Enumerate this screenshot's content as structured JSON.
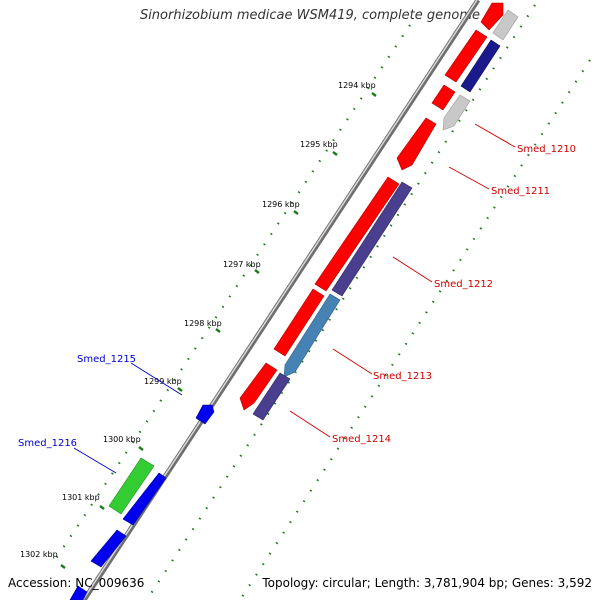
{
  "header": {
    "title": "Sinorhizobium medicae WSM419, complete genome"
  },
  "footer": {
    "accession": "Accession: NC_009636",
    "summary": "Topology: circular; Length: 3,781,904 bp; Genes: 3,592"
  },
  "colors": {
    "red": "#ff0000",
    "gray": "#c8c8c8",
    "navy": "#1a1a8c",
    "purple": "#4a3f8f",
    "steel": "#4682b4",
    "blue": "#0000ee",
    "green": "#33cc33",
    "backbone": "#808080",
    "tick": "#1e7a1e",
    "label_red": "#cc0000",
    "label_blue": "#0000cc"
  },
  "scale_labels": [
    "1294 kbp",
    "1295 kbp",
    "1296 kbp",
    "1297 kbp",
    "1298 kbp",
    "1299 kbp",
    "1300 kbp",
    "1301 kbp",
    "1302 kbp"
  ],
  "gene_labels": {
    "red": [
      "Smed_1210",
      "Smed_1211",
      "Smed_1212",
      "Smed_1213",
      "Smed_1214"
    ],
    "blue": [
      "Smed_1215",
      "Smed_1216"
    ]
  }
}
